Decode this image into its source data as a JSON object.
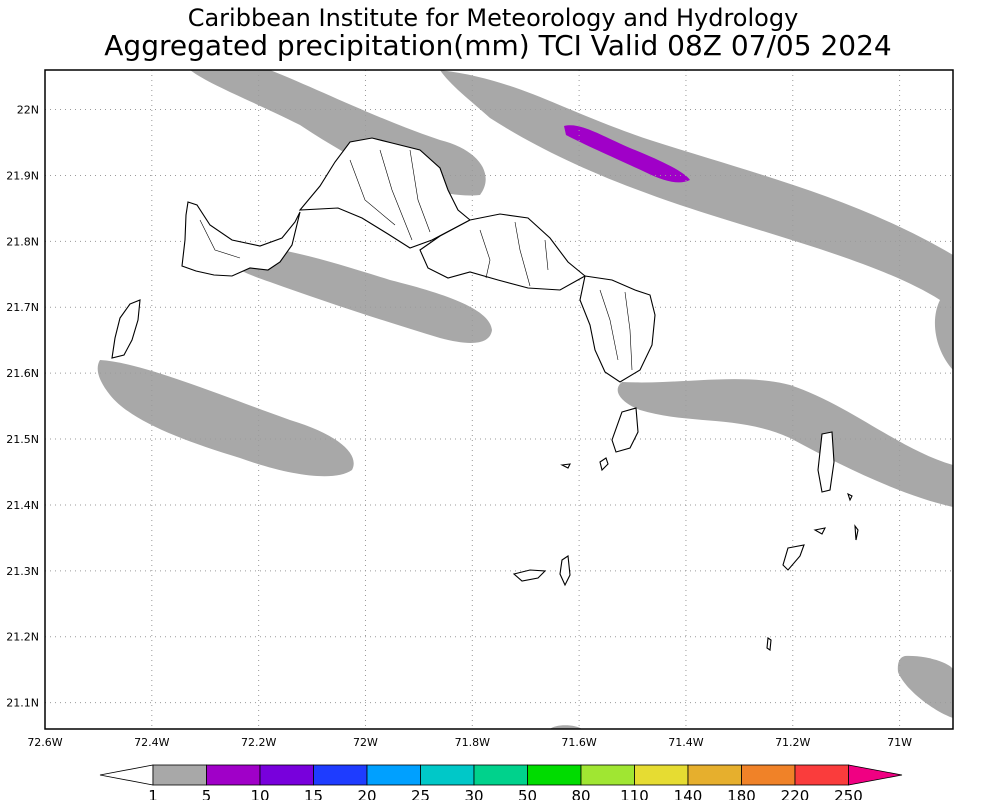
{
  "header": {
    "title_line1": "Caribbean Institute for Meteorology and Hydrology",
    "title_line2": "Aggregated precipitation(mm) TCI Valid 08Z 07/05 2024"
  },
  "axes": {
    "lat_labels": [
      "22N",
      "21.9N",
      "21.8N",
      "21.7N",
      "21.6N",
      "21.5N",
      "21.4N",
      "21.3N",
      "21.2N",
      "21.1N"
    ],
    "lat_values": [
      22.0,
      21.9,
      21.8,
      21.7,
      21.6,
      21.5,
      21.4,
      21.3,
      21.2,
      21.1
    ],
    "lon_labels": [
      "72.6W",
      "72.4W",
      "72.2W",
      "72W",
      "71.8W",
      "71.6W",
      "71.4W",
      "71.2W",
      "71W"
    ],
    "lon_values": [
      -72.6,
      -72.4,
      -72.2,
      -72.0,
      -71.8,
      -71.6,
      -71.4,
      -71.2,
      -71.0
    ],
    "lon_range": [
      -72.6,
      -70.9
    ],
    "lat_range": [
      21.06,
      22.06
    ],
    "grid": "dotted"
  },
  "colorbar": {
    "labels": [
      "1",
      "5",
      "10",
      "15",
      "20",
      "25",
      "30",
      "50",
      "80",
      "110",
      "140",
      "180",
      "220",
      "250"
    ],
    "colors": [
      "#a8a8a8",
      "#a000c8",
      "#7800dc",
      "#1e3cff",
      "#00a0ff",
      "#00c8c8",
      "#00d28c",
      "#00dc00",
      "#a0e632",
      "#e6dc32",
      "#e6af2d",
      "#f08228",
      "#fa3c3c",
      "#f00082"
    ],
    "under_color": "#ffffff",
    "over_color": "#f00082"
  },
  "colors": {
    "precip_light": "#a8a8a8",
    "precip_moderate": "#a000c8",
    "land_outline": "#000000"
  }
}
